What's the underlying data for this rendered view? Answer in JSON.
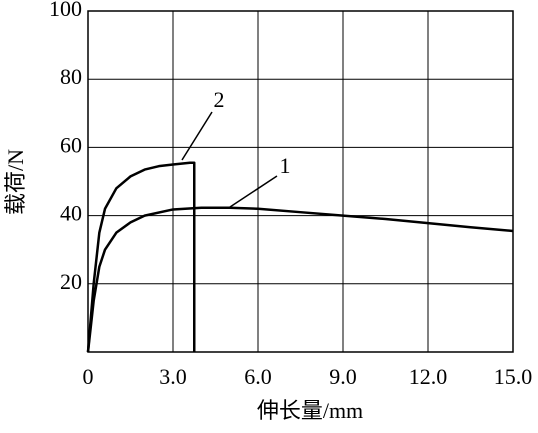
{
  "chart_data": {
    "type": "line",
    "x_label": "伸长量/mm",
    "y_label": "载荷/N",
    "xlim": [
      0,
      15
    ],
    "ylim": [
      0,
      100
    ],
    "xticks": [
      0,
      {
        "value": 3,
        "label": "3.0"
      },
      {
        "value": 6,
        "label": "6.0"
      },
      {
        "value": 9,
        "label": "9.0"
      },
      {
        "value": 12,
        "label": "12.0"
      },
      {
        "value": 15,
        "label": "15.0"
      }
    ],
    "yticks": [
      20,
      40,
      60,
      80,
      100
    ],
    "grid": true,
    "series": [
      {
        "name": "1",
        "color": "#000000",
        "x": [
          0,
          0.2,
          0.4,
          0.6,
          1.0,
          1.5,
          2.0,
          3.0,
          4.0,
          5.0,
          6.0,
          7.5,
          9.0,
          10.5,
          12.0,
          13.5,
          15.0
        ],
        "values": [
          0,
          15,
          25,
          30,
          35,
          38,
          40,
          41.8,
          42.3,
          42.3,
          42,
          41,
          40,
          39,
          37.8,
          36.6,
          35.5
        ]
      },
      {
        "name": "2",
        "color": "#000000",
        "x": [
          0,
          0.2,
          0.4,
          0.6,
          1.0,
          1.5,
          2.0,
          2.5,
          3.0,
          3.6,
          3.75,
          3.75
        ],
        "values": [
          0,
          20,
          35,
          42,
          48,
          51.5,
          53.5,
          54.5,
          55,
          55.5,
          55.5,
          0
        ]
      }
    ]
  }
}
